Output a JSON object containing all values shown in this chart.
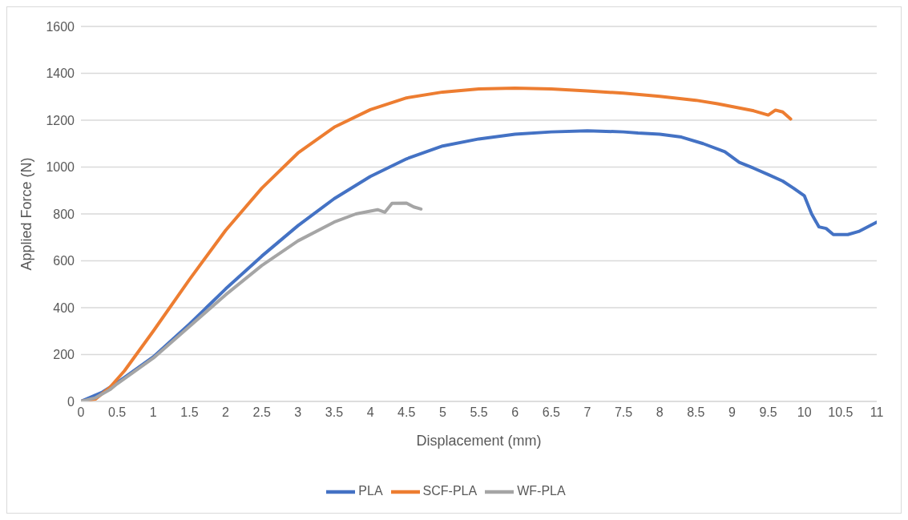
{
  "chart_data": {
    "type": "line",
    "xlabel": "Displacement (mm)",
    "ylabel": "Applied Force (N)",
    "xlim": [
      0,
      11
    ],
    "xticks": [
      0,
      0.5,
      1,
      1.5,
      2,
      2.5,
      3,
      3.5,
      4,
      4.5,
      5,
      5.5,
      6,
      6.5,
      7,
      7.5,
      8,
      8.5,
      9,
      9.5,
      10,
      10.5,
      11
    ],
    "ylim": [
      0,
      1600
    ],
    "yticks": [
      0,
      200,
      400,
      600,
      800,
      1000,
      1200,
      1400,
      1600
    ],
    "grid": "y",
    "legend": "bottom",
    "marker": "none",
    "line_style": "solid",
    "series": [
      {
        "name": "PLA",
        "color": "#4472c4",
        "x": [
          0,
          0.3,
          0.5,
          1,
          1.5,
          2,
          2.5,
          3,
          3.5,
          4,
          4.5,
          5,
          5.5,
          6,
          6.5,
          7,
          7.5,
          7.7,
          8,
          8.3,
          8.6,
          8.9,
          9.1,
          9.3,
          9.5,
          9.7,
          9.85,
          10,
          10.1,
          10.2,
          10.3,
          10.4,
          10.6,
          10.75,
          11
        ],
        "values": [
          0,
          40,
          80,
          190,
          330,
          480,
          620,
          750,
          865,
          960,
          1035,
          1090,
          1120,
          1140,
          1150,
          1155,
          1150,
          1145,
          1140,
          1128,
          1100,
          1065,
          1020,
          995,
          968,
          940,
          910,
          877,
          800,
          745,
          738,
          712,
          712,
          725,
          765
        ]
      },
      {
        "name": "SCF-PLA",
        "color": "#ed7d31",
        "x": [
          0,
          0.2,
          0.4,
          0.6,
          1,
          1.5,
          2,
          2.5,
          3,
          3.5,
          4,
          4.5,
          5,
          5.5,
          6,
          6.5,
          7,
          7.5,
          8,
          8.5,
          8.8,
          9,
          9.3,
          9.5,
          9.6,
          9.7,
          9.81
        ],
        "values": [
          0,
          10,
          60,
          130,
          300,
          520,
          730,
          910,
          1060,
          1170,
          1245,
          1295,
          1320,
          1333,
          1337,
          1333,
          1325,
          1315,
          1302,
          1285,
          1270,
          1258,
          1240,
          1222,
          1243,
          1235,
          1205
        ]
      },
      {
        "name": "WF-PLA",
        "color": "#a5a5a5",
        "x": [
          0,
          0.2,
          0.4,
          0.5,
          1,
          1.5,
          2,
          2.5,
          3,
          3.5,
          3.8,
          4.1,
          4.2,
          4.3,
          4.5,
          4.6,
          4.7
        ],
        "values": [
          0,
          15,
          50,
          75,
          185,
          320,
          455,
          580,
          685,
          765,
          800,
          818,
          807,
          845,
          846,
          830,
          821
        ]
      }
    ]
  }
}
